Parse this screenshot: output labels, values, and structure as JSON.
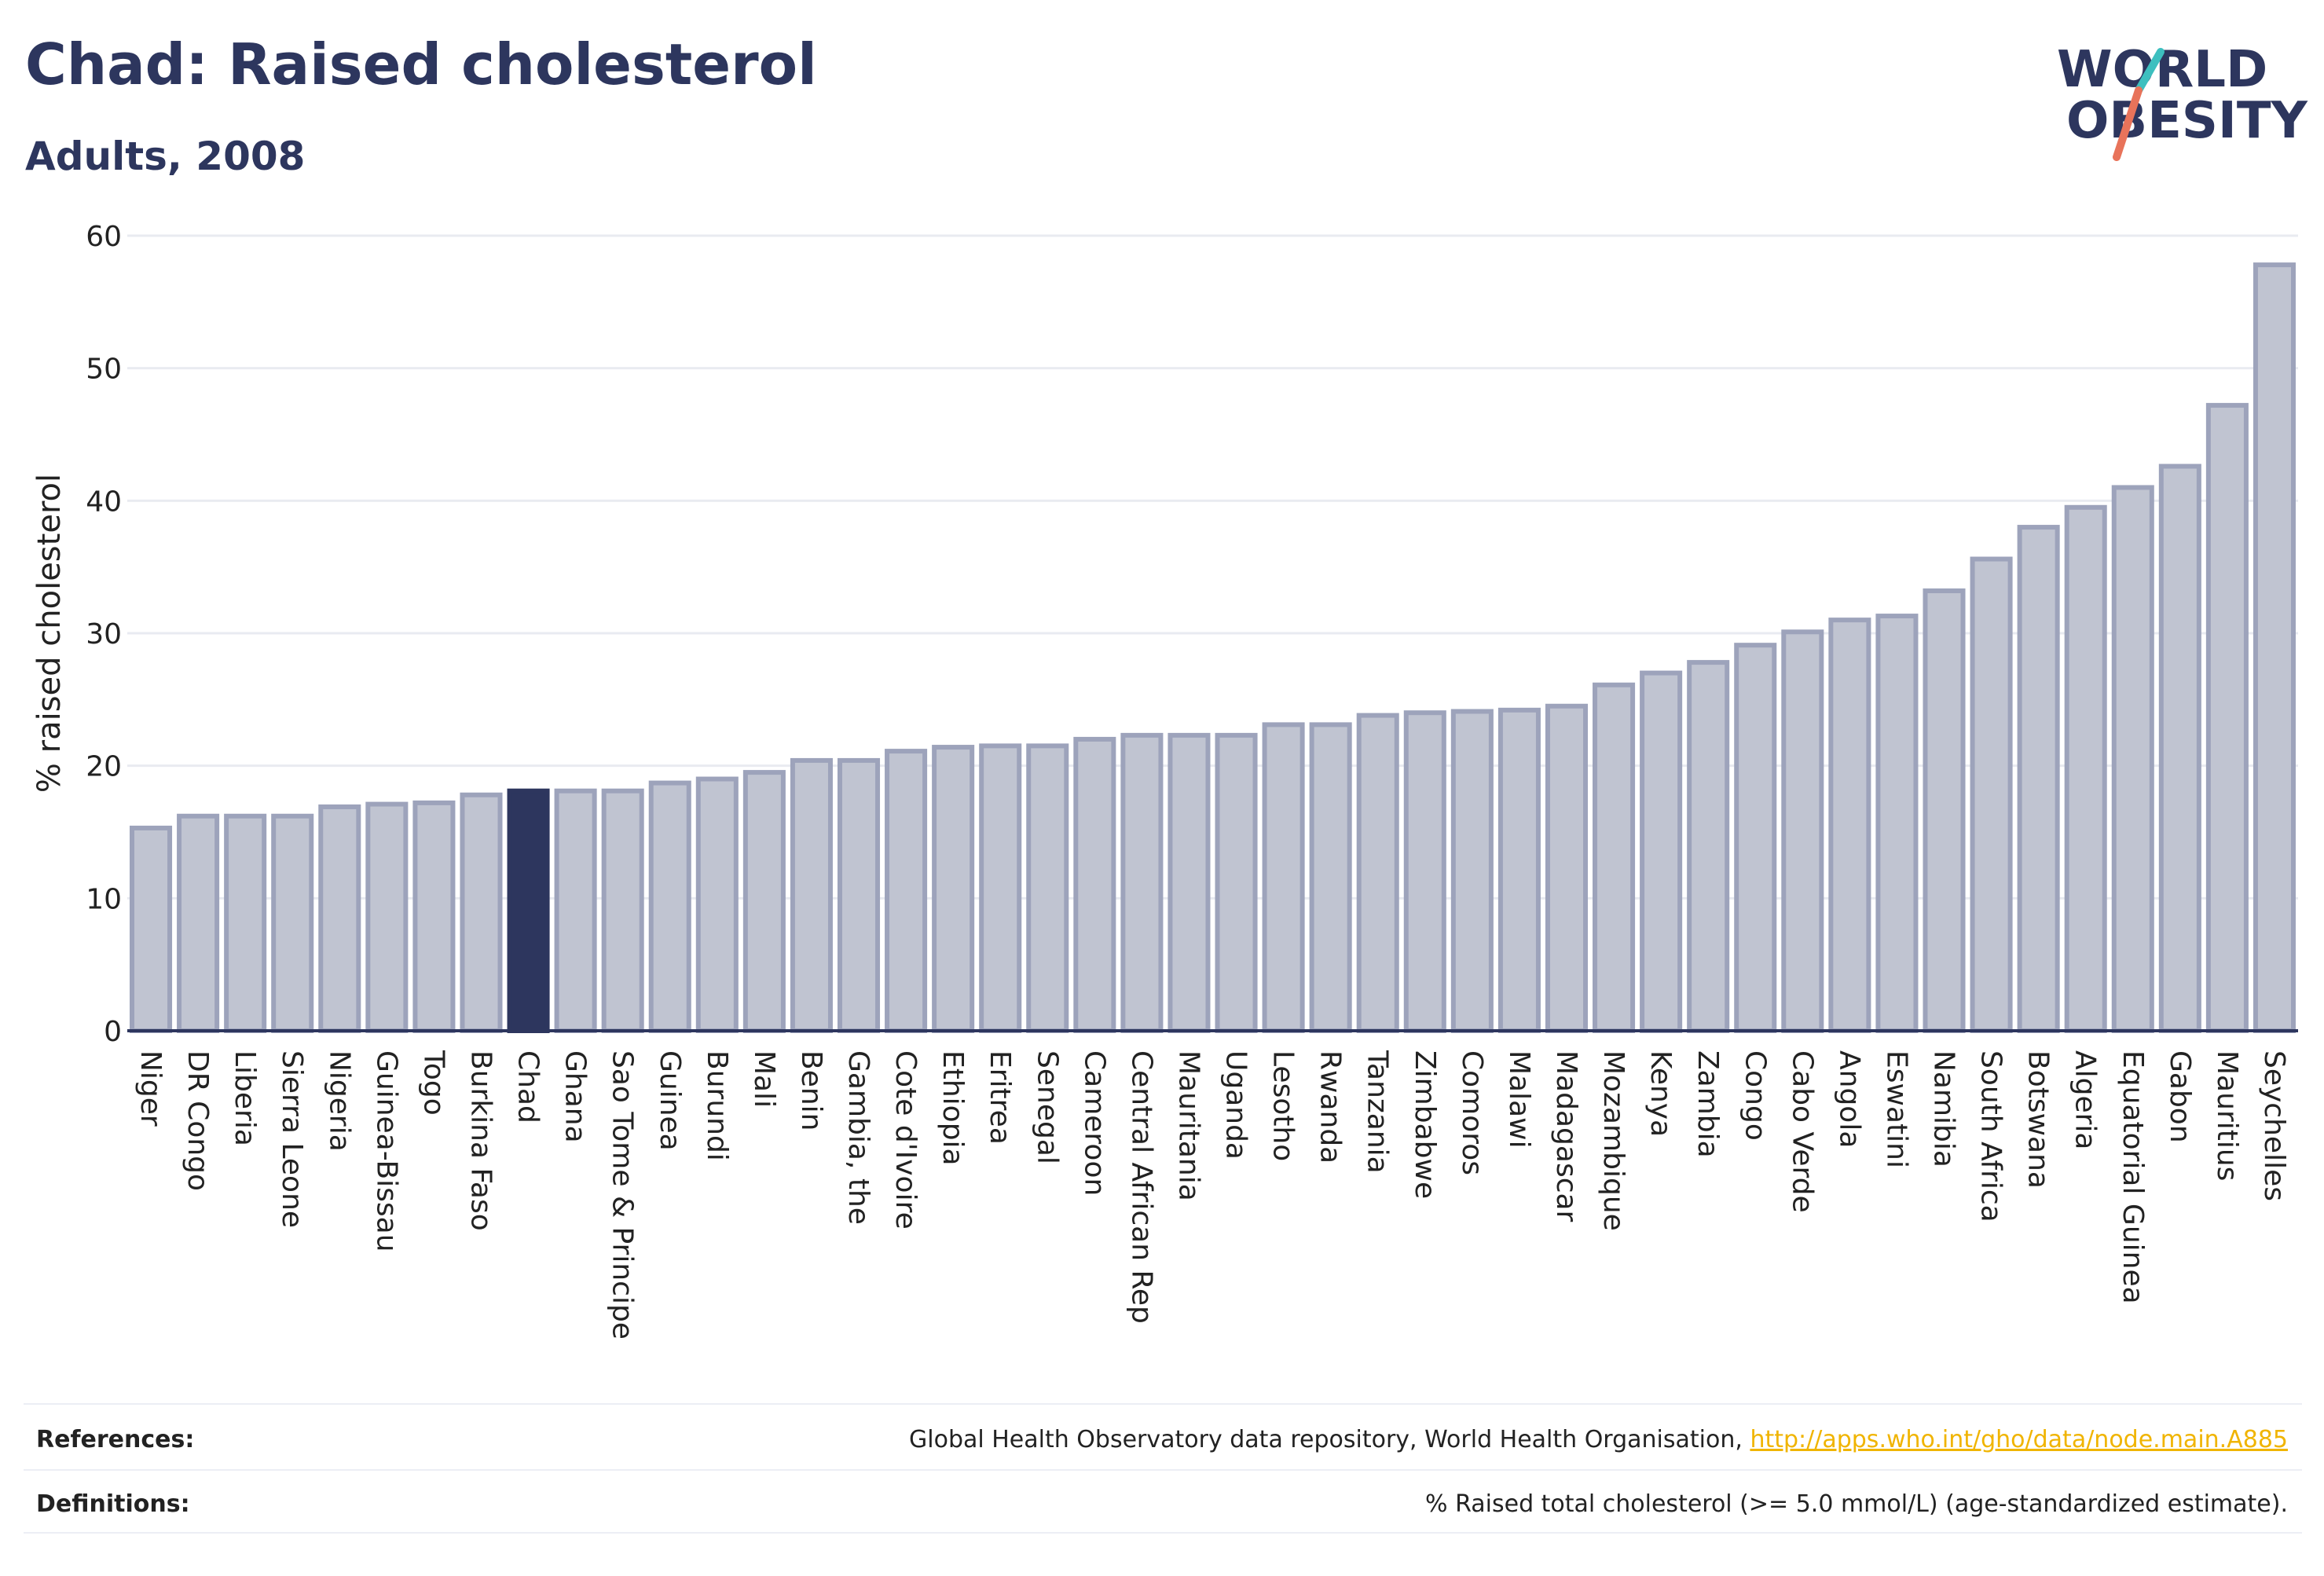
{
  "header": {
    "title": "Chad: Raised cholesterol",
    "subtitle": "Adults, 2008"
  },
  "logo": {
    "line1": "WORLD",
    "line2": "OBESITY",
    "accent_colors": [
      "#3dbfbf",
      "#e8735a"
    ]
  },
  "colors": {
    "bar": "#c0c4d1",
    "bar_stroke": "#9da3bb",
    "highlight": "#2d365e",
    "grid": "#e9ebf1",
    "axis": "#2d365e",
    "link": "#f0b400"
  },
  "chart_data": {
    "type": "bar",
    "ylabel": "% raised cholesterol",
    "ylim": [
      0,
      60
    ],
    "yticks": [
      0,
      10,
      20,
      30,
      40,
      50,
      60
    ],
    "highlight": "Chad",
    "grid": true,
    "categories": [
      "Niger",
      "DR Congo",
      "Liberia",
      "Sierra Leone",
      "Nigeria",
      "Guinea-Bissau",
      "Togo",
      "Burkina Faso",
      "Chad",
      "Ghana",
      "Sao Tome & Principe",
      "Guinea",
      "Burundi",
      "Mali",
      "Benin",
      "Gambia, the",
      "Cote d'Ivoire",
      "Ethiopia",
      "Eritrea",
      "Senegal",
      "Cameroon",
      "Central African Rep",
      "Mauritania",
      "Uganda",
      "Lesotho",
      "Rwanda",
      "Tanzania",
      "Zimbabwe",
      "Comoros",
      "Malawi",
      "Madagascar",
      "Mozambique",
      "Kenya",
      "Zambia",
      "Congo",
      "Cabo Verde",
      "Angola",
      "Eswatini",
      "Namibia",
      "South Africa",
      "Botswana",
      "Algeria",
      "Equatorial Guinea",
      "Gabon",
      "Mauritius",
      "Seychelles"
    ],
    "values": [
      15.3,
      16.2,
      16.2,
      16.2,
      16.9,
      17.1,
      17.2,
      17.8,
      18.1,
      18.1,
      18.1,
      18.7,
      19.0,
      19.5,
      20.4,
      20.4,
      21.1,
      21.4,
      21.5,
      21.5,
      22.0,
      22.3,
      22.3,
      22.3,
      23.1,
      23.1,
      23.8,
      24.0,
      24.1,
      24.2,
      24.5,
      26.1,
      27.0,
      27.8,
      29.1,
      30.1,
      31.0,
      31.3,
      33.2,
      35.6,
      38.0,
      39.5,
      41.0,
      42.6,
      47.2,
      57.8
    ]
  },
  "footer": {
    "references_label": "References:",
    "references_text": "Global Health Observatory data repository, World Health Organisation, ",
    "references_link": "http://apps.who.int/gho/data/node.main.A885",
    "definitions_label": "Definitions:",
    "definitions_text": "% Raised total cholesterol (>= 5.0 mmol/L) (age-standardized estimate)."
  }
}
